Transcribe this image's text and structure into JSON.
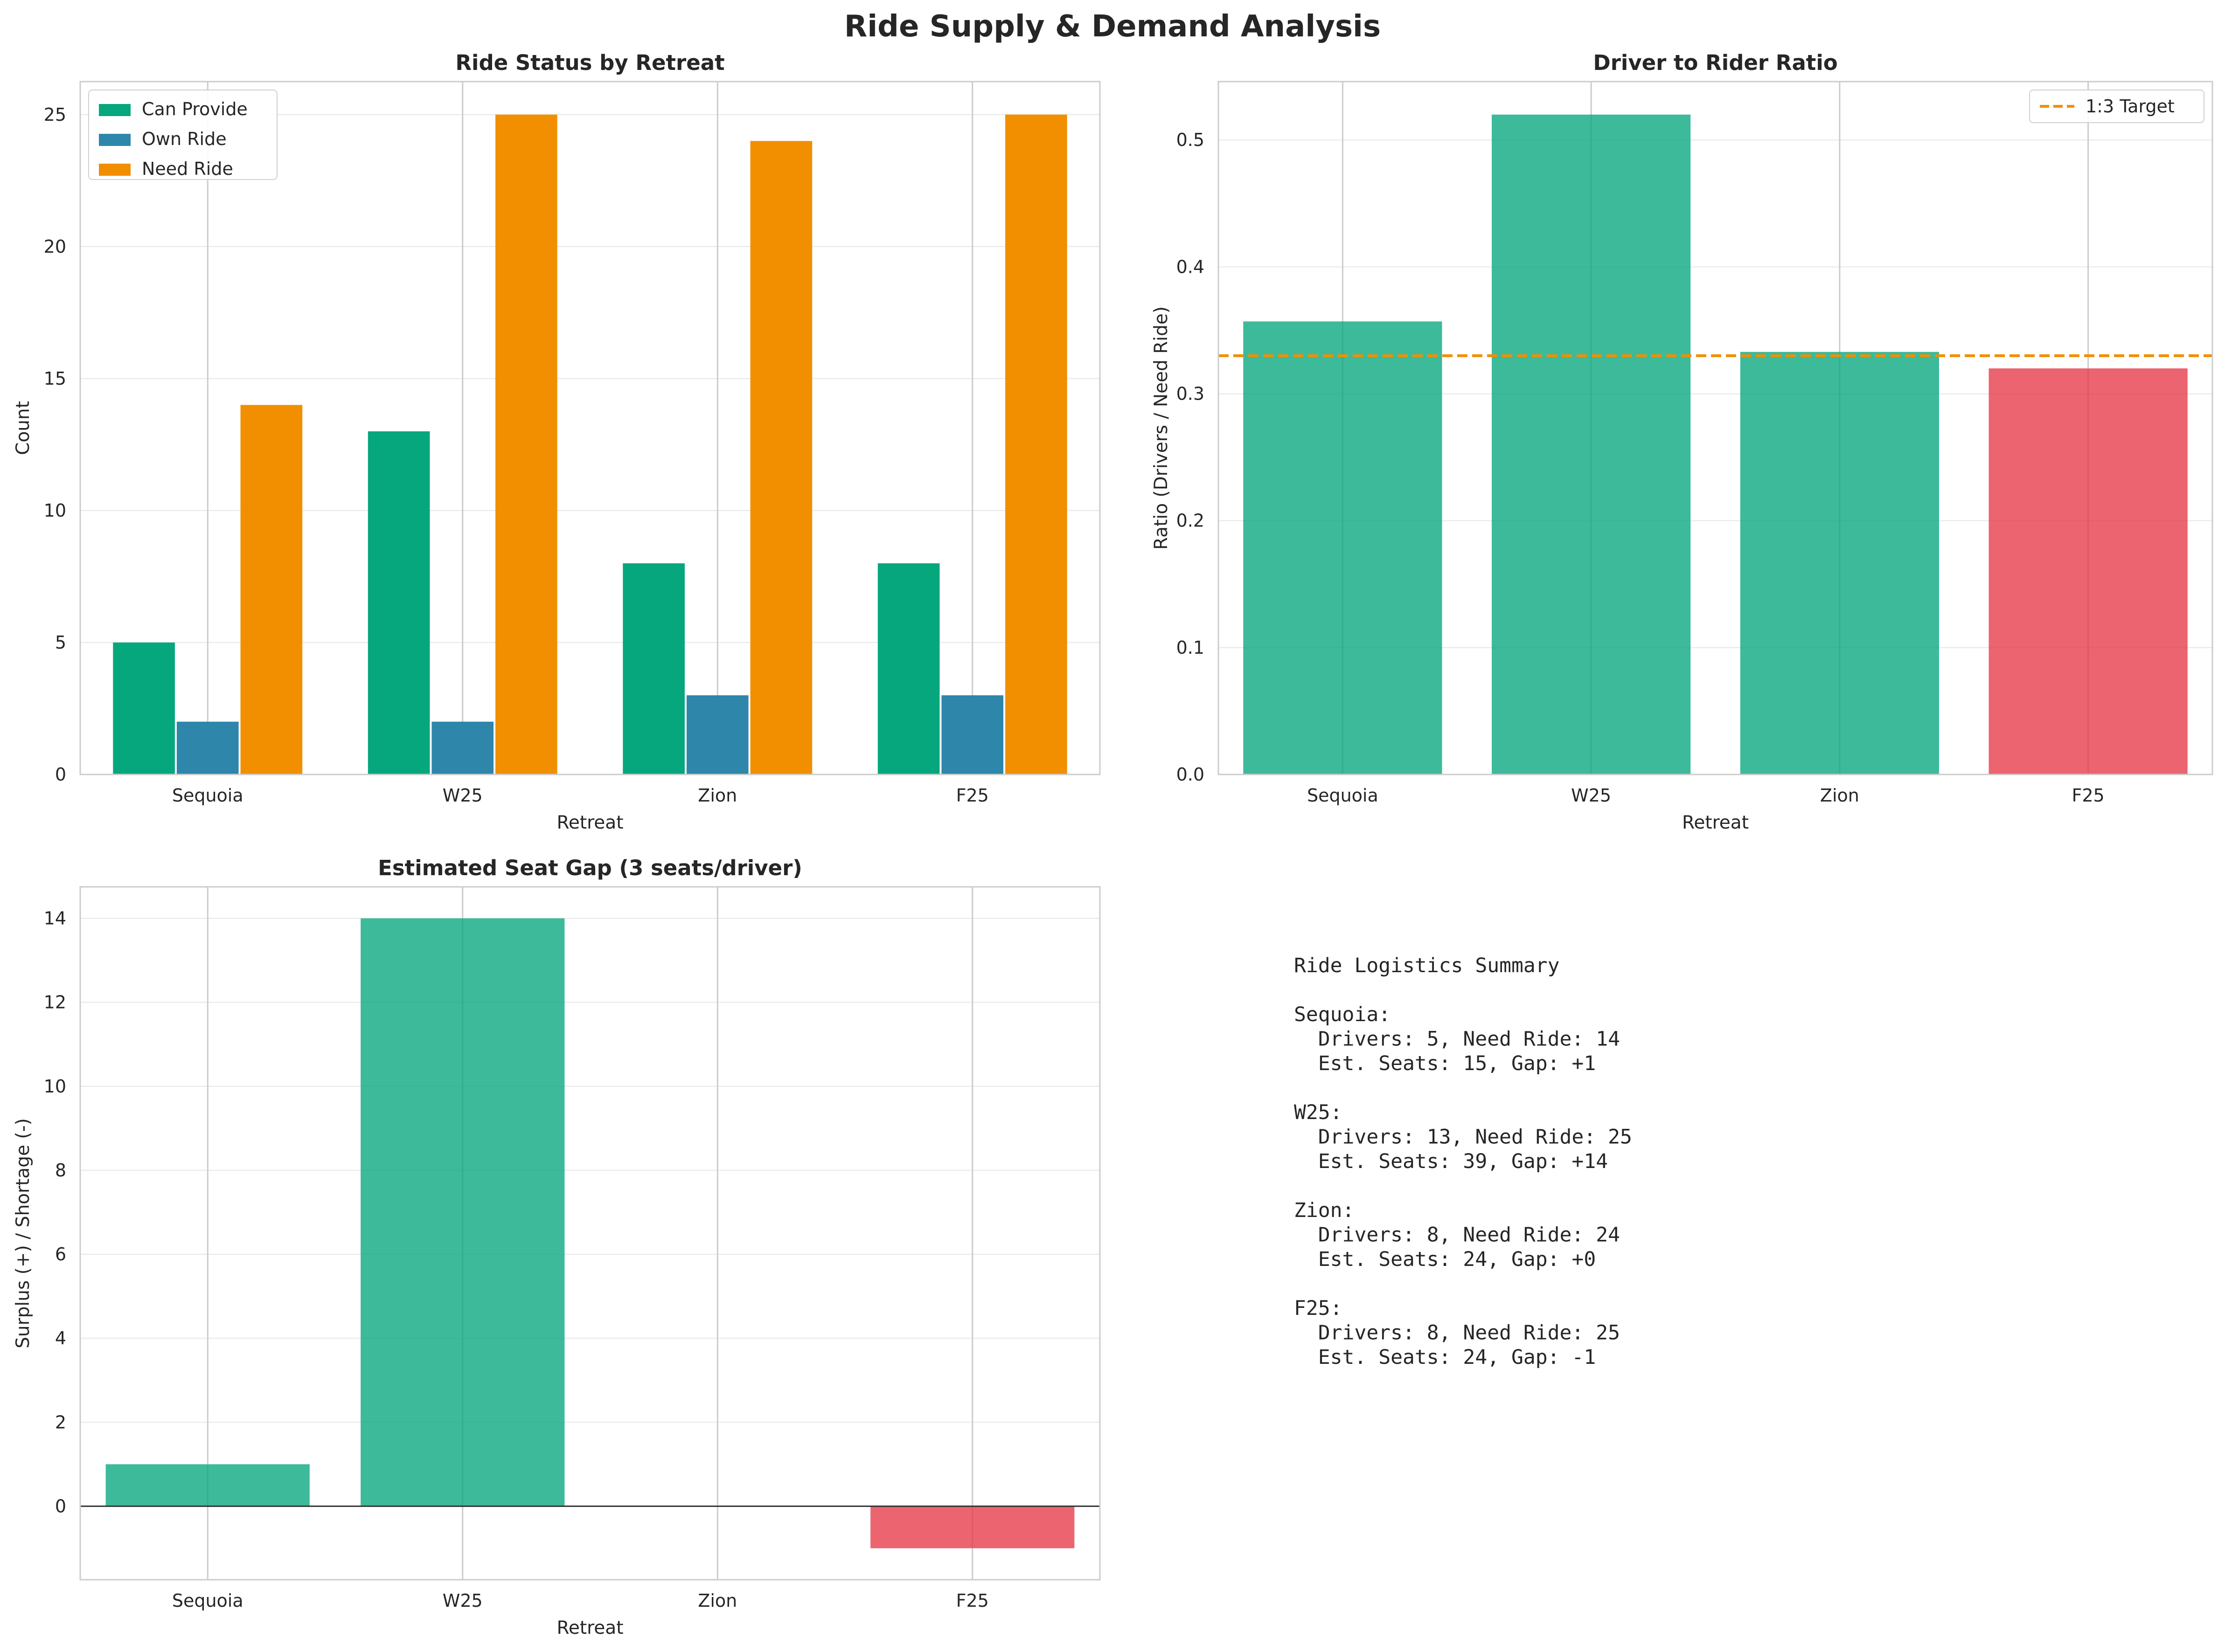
{
  "figure": {
    "suptitle": "Ride Supply & Demand Analysis"
  },
  "colors": {
    "can_provide": "#06a77d",
    "own_ride": "#2e86ab",
    "need_ride": "#f18f01",
    "surplus": "#06a77d",
    "shortage": "#e63946",
    "target_line": "#f18f01",
    "zero_line": "#333333"
  },
  "chart_data": [
    {
      "id": "status",
      "type": "bar",
      "title": "Ride Status by Retreat",
      "xlabel": "Retreat",
      "ylabel": "Count",
      "categories": [
        "Sequoia",
        "W25",
        "Zion",
        "F25"
      ],
      "series": [
        {
          "name": "Can Provide",
          "values": [
            5,
            13,
            8,
            8
          ]
        },
        {
          "name": "Own Ride",
          "values": [
            2,
            2,
            3,
            3
          ]
        },
        {
          "name": "Need Ride",
          "values": [
            14,
            25,
            24,
            25
          ]
        }
      ],
      "ylim": [
        0,
        26.25
      ],
      "yticks": [
        "0",
        "5",
        "10",
        "15",
        "20",
        "25"
      ],
      "legend": "top-left"
    },
    {
      "id": "ratio",
      "type": "bar",
      "title": "Driver to Rider Ratio",
      "xlabel": "Retreat",
      "ylabel": "Ratio (Drivers / Need Ride)",
      "categories": [
        "Sequoia",
        "W25",
        "Zion",
        "F25"
      ],
      "values": [
        0.357,
        0.52,
        0.333,
        0.32
      ],
      "reference_line": {
        "label": "1:3 Target",
        "value": 0.33
      },
      "ylim": [
        0,
        0.546
      ],
      "yticks": [
        "0.0",
        "0.1",
        "0.2",
        "0.3",
        "0.4",
        "0.5"
      ],
      "legend": "top-right"
    },
    {
      "id": "gap",
      "type": "bar",
      "title": "Estimated Seat Gap (3 seats/driver)",
      "xlabel": "Retreat",
      "ylabel": "Surplus (+) / Shortage (-)",
      "categories": [
        "Sequoia",
        "W25",
        "Zion",
        "F25"
      ],
      "values": [
        1,
        14,
        0,
        -1
      ],
      "ylim": [
        -1.75,
        14.75
      ],
      "yticks": [
        "0",
        "2",
        "4",
        "6",
        "8",
        "10",
        "12",
        "14"
      ]
    }
  ],
  "summary": {
    "lines": [
      "Ride Logistics Summary",
      "",
      "Sequoia:",
      "  Drivers: 5, Need Ride: 14",
      "  Est. Seats: 15, Gap: +1",
      "",
      "W25:",
      "  Drivers: 13, Need Ride: 25",
      "  Est. Seats: 39, Gap: +14",
      "",
      "Zion:",
      "  Drivers: 8, Need Ride: 24",
      "  Est. Seats: 24, Gap: +0",
      "",
      "F25:",
      "  Drivers: 8, Need Ride: 25",
      "  Est. Seats: 24, Gap: -1"
    ]
  }
}
